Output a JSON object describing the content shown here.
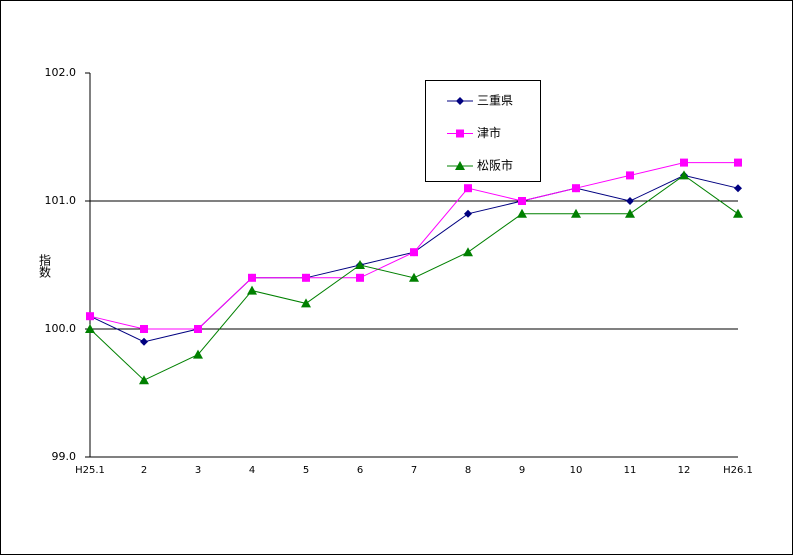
{
  "chart_data": {
    "type": "line",
    "y_label": "指数",
    "categories": [
      "H25.1",
      "2",
      "3",
      "4",
      "5",
      "6",
      "7",
      "8",
      "9",
      "10",
      "11",
      "12",
      "H26.1"
    ],
    "series": [
      {
        "name": "三重県",
        "color": "#000080",
        "marker": "diamond",
        "values": [
          100.1,
          99.9,
          100.0,
          100.4,
          100.4,
          100.5,
          100.6,
          100.9,
          101.0,
          101.1,
          101.0,
          101.2,
          101.1
        ]
      },
      {
        "name": "津市",
        "color": "#ff00ff",
        "marker": "square",
        "values": [
          100.1,
          100.0,
          100.0,
          100.4,
          100.4,
          100.4,
          100.6,
          101.1,
          101.0,
          101.1,
          101.2,
          101.3,
          101.3
        ]
      },
      {
        "name": "松阪市",
        "color": "#008000",
        "marker": "triangle",
        "values": [
          100.0,
          99.6,
          99.8,
          100.3,
          100.2,
          100.5,
          100.4,
          100.6,
          100.9,
          100.9,
          100.9,
          101.2,
          100.9
        ]
      }
    ],
    "ylim": [
      99,
      102
    ],
    "yticks": [
      {
        "value": 99,
        "label": "99.0"
      },
      {
        "value": 100,
        "label": "100.0"
      },
      {
        "value": 101,
        "label": "101.0"
      },
      {
        "value": 102,
        "label": "102.0"
      }
    ],
    "grid": true
  }
}
